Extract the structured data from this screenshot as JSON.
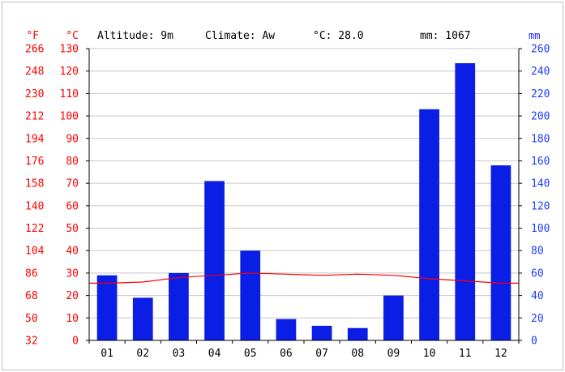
{
  "header": {
    "altitude": "Altitude: 9m",
    "climate": "Climate: Aw",
    "avg_temp": "°C: 28.0",
    "precip_total": "mm: 1067"
  },
  "units": {
    "fahrenheit": "°F",
    "celsius": "°C",
    "mm": "mm"
  },
  "colors": {
    "bars": "#0a1ee6",
    "temp_line": "#ff0000",
    "left_axis": "#ff0000",
    "right_axis": "#1b3cff"
  },
  "chart_data": {
    "type": "bar",
    "categories": [
      "01",
      "02",
      "03",
      "04",
      "05",
      "06",
      "07",
      "08",
      "09",
      "10",
      "11",
      "12"
    ],
    "series": [
      {
        "axis": "precipitation_mm",
        "type": "bar",
        "values": [
          58,
          38,
          60,
          142,
          80,
          19,
          13,
          11,
          40,
          206,
          247,
          156
        ]
      },
      {
        "axis": "temperature_c",
        "type": "line",
        "values": [
          25.5,
          26,
          28,
          29,
          30,
          29.5,
          29,
          29.5,
          29,
          27.5,
          26.5,
          25.5
        ]
      }
    ],
    "y_left_celsius": {
      "ticks": [
        0,
        10,
        20,
        30,
        40,
        50,
        60,
        70,
        80,
        90,
        100,
        110,
        120,
        130
      ],
      "range": [
        0,
        130
      ]
    },
    "y_left_fahrenheit": {
      "ticks": [
        32,
        50,
        68,
        86,
        104,
        122,
        140,
        158,
        176,
        194,
        212,
        230,
        248,
        266
      ]
    },
    "y_right_mm": {
      "ticks": [
        0,
        20,
        40,
        60,
        80,
        100,
        120,
        140,
        160,
        180,
        200,
        220,
        240,
        260
      ],
      "range": [
        0,
        260
      ]
    },
    "grid": true
  }
}
